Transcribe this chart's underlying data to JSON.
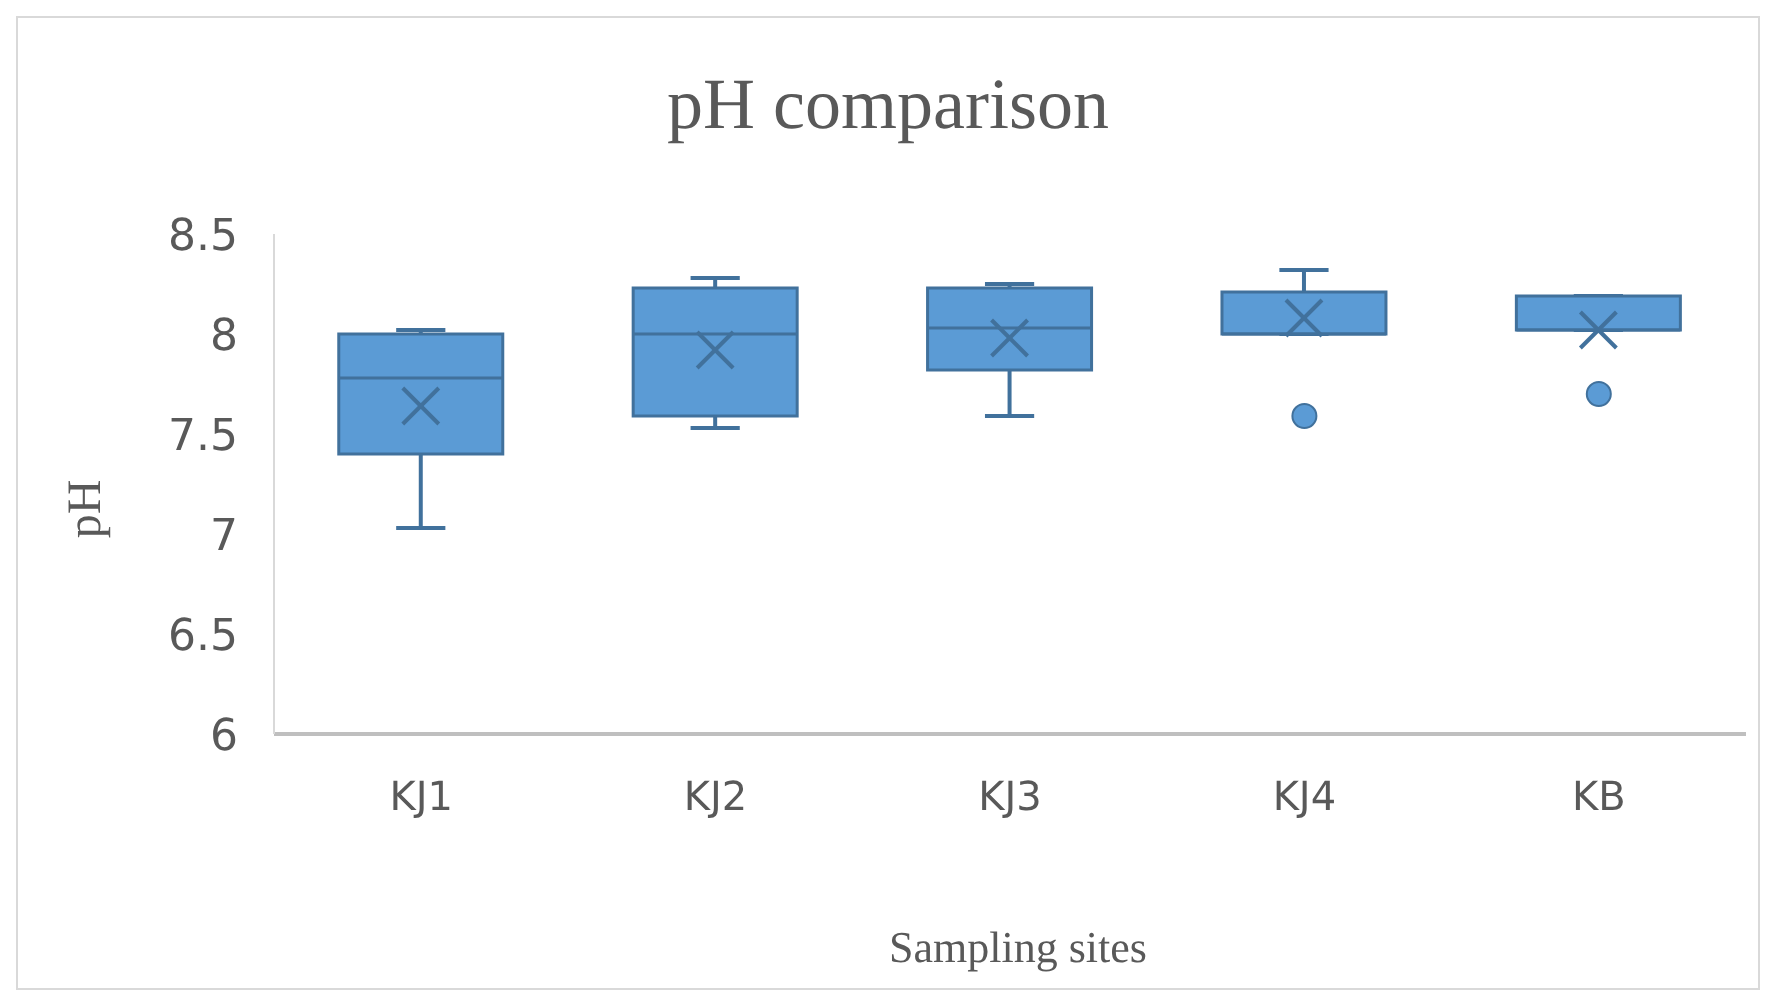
{
  "chart_data": {
    "type": "box",
    "title": "pH comparison",
    "xlabel": "Sampling sites",
    "ylabel": "pH",
    "categories": [
      "KJ1",
      "KJ2",
      "KJ3",
      "KJ4",
      "KB"
    ],
    "color": "#5b9bd5",
    "boxes": [
      {
        "low": 7.03,
        "q1": 7.4,
        "median": 7.78,
        "q3": 8.0,
        "high": 8.02,
        "mean": 7.64
      },
      {
        "low": 7.53,
        "q1": 7.59,
        "median": 8.0,
        "q3": 8.23,
        "high": 8.28,
        "mean": 7.92
      },
      {
        "low": 7.59,
        "q1": 7.82,
        "median": 8.03,
        "q3": 8.23,
        "high": 8.25,
        "mean": 7.98
      },
      {
        "low": 8.0,
        "q1": 8.0,
        "median": 8.0,
        "q3": 8.21,
        "high": 8.32,
        "mean": 8.08,
        "outliers": [
          7.59
        ]
      },
      {
        "low": 8.02,
        "q1": 8.02,
        "median": 8.02,
        "q3": 8.19,
        "high": 8.19,
        "mean": 8.02,
        "outliers": [
          7.7
        ]
      }
    ],
    "ylim": [
      6,
      8.5
    ],
    "yticks": [
      6,
      6.5,
      7,
      7.5,
      8,
      8.5
    ],
    "grid": false,
    "legend": false
  }
}
